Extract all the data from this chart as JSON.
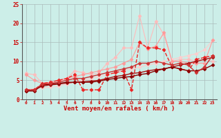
{
  "background_color": "#cceee8",
  "grid_color": "#aabbbb",
  "xlabel": "Vent moyen/en rafales ( km/h )",
  "xlabel_color": "#cc0000",
  "tick_color": "#cc0000",
  "xlim": [
    -0.5,
    23.5
  ],
  "ylim": [
    0,
    25
  ],
  "yticks": [
    0,
    5,
    10,
    15,
    20,
    25
  ],
  "xticks": [
    0,
    1,
    2,
    3,
    4,
    5,
    6,
    7,
    8,
    9,
    10,
    11,
    12,
    13,
    14,
    15,
    16,
    17,
    18,
    19,
    20,
    21,
    22,
    23
  ],
  "series": [
    {
      "x": [
        0,
        1,
        2,
        3,
        4,
        5,
        6,
        7,
        8,
        9,
        10,
        11,
        12,
        13,
        14,
        15,
        16,
        17,
        18,
        19,
        20,
        21,
        22,
        23
      ],
      "y": [
        6.8,
        6.5,
        4.2,
        4.2,
        4.5,
        5.5,
        7.5,
        7.0,
        6.5,
        7.0,
        9.5,
        11.0,
        13.5,
        13.5,
        22.0,
        13.5,
        20.5,
        17.0,
        10.0,
        10.5,
        10.5,
        10.0,
        10.5,
        10.0
      ],
      "color": "#ffbbbb",
      "marker": "D",
      "markersize": 2.5,
      "linewidth": 0.8,
      "linestyle": "-"
    },
    {
      "x": [
        0,
        1,
        2,
        3,
        4,
        5,
        6,
        7,
        8,
        9,
        10,
        11,
        12,
        13,
        14,
        15,
        16,
        17,
        18,
        19,
        20,
        21,
        22,
        23
      ],
      "y": [
        2.5,
        2.8,
        3.0,
        3.2,
        3.5,
        4.0,
        4.5,
        5.0,
        5.5,
        6.0,
        6.5,
        7.0,
        7.5,
        8.0,
        8.5,
        9.0,
        9.5,
        10.0,
        10.5,
        11.0,
        11.5,
        12.0,
        13.0,
        15.5
      ],
      "color": "#ffcccc",
      "marker": "D",
      "markersize": 2.5,
      "linewidth": 0.8,
      "linestyle": "-"
    },
    {
      "x": [
        0,
        1,
        2,
        3,
        4,
        5,
        6,
        7,
        8,
        9,
        10,
        11,
        12,
        13,
        14,
        15,
        16,
        17,
        18,
        19,
        20,
        21,
        22,
        23
      ],
      "y": [
        6.5,
        5.0,
        4.2,
        4.5,
        5.0,
        5.5,
        6.0,
        6.5,
        7.0,
        7.5,
        8.0,
        8.5,
        9.5,
        10.5,
        15.0,
        13.2,
        14.0,
        17.5,
        10.0,
        10.0,
        9.5,
        9.5,
        9.5,
        15.5
      ],
      "color": "#ff9999",
      "marker": "D",
      "markersize": 2.5,
      "linewidth": 0.8,
      "linestyle": "-"
    },
    {
      "x": [
        0,
        1,
        2,
        3,
        4,
        5,
        6,
        7,
        8,
        9,
        10,
        11,
        12,
        13,
        14,
        15,
        16,
        17,
        18,
        19,
        20,
        21,
        22,
        23
      ],
      "y": [
        2.5,
        2.5,
        4.2,
        4.5,
        5.0,
        5.5,
        6.5,
        2.5,
        2.5,
        2.5,
        6.5,
        7.0,
        7.5,
        2.5,
        15.0,
        13.5,
        13.5,
        13.0,
        8.5,
        8.0,
        7.5,
        10.5,
        11.0,
        11.5
      ],
      "color": "#ee2222",
      "marker": "D",
      "markersize": 2.5,
      "linewidth": 1.0,
      "linestyle": "--"
    },
    {
      "x": [
        0,
        1,
        2,
        3,
        4,
        5,
        6,
        7,
        8,
        9,
        10,
        11,
        12,
        13,
        14,
        15,
        16,
        17,
        18,
        19,
        20,
        21,
        22,
        23
      ],
      "y": [
        2.2,
        2.5,
        3.5,
        3.8,
        4.0,
        4.3,
        4.5,
        4.6,
        4.8,
        5.0,
        5.5,
        6.0,
        6.3,
        6.8,
        7.0,
        7.5,
        7.8,
        8.0,
        8.5,
        9.0,
        9.5,
        10.0,
        10.5,
        11.0
      ],
      "color": "#aa1111",
      "marker": "D",
      "markersize": 2.5,
      "linewidth": 1.0,
      "linestyle": "-"
    },
    {
      "x": [
        0,
        1,
        2,
        3,
        4,
        5,
        6,
        7,
        8,
        9,
        10,
        11,
        12,
        13,
        14,
        15,
        16,
        17,
        18,
        19,
        20,
        21,
        22,
        23
      ],
      "y": [
        2.2,
        2.2,
        3.8,
        4.0,
        4.2,
        4.5,
        4.5,
        4.5,
        4.5,
        4.8,
        5.2,
        5.5,
        5.8,
        6.0,
        6.5,
        6.8,
        7.5,
        8.0,
        8.5,
        8.0,
        7.5,
        7.5,
        8.0,
        9.0
      ],
      "color": "#880000",
      "marker": "D",
      "markersize": 2.5,
      "linewidth": 1.0,
      "linestyle": "-"
    },
    {
      "x": [
        0,
        1,
        2,
        3,
        4,
        5,
        6,
        7,
        8,
        9,
        10,
        11,
        12,
        13,
        14,
        15,
        16,
        17,
        18,
        19,
        20,
        21,
        22,
        23
      ],
      "y": [
        2.5,
        2.5,
        4.0,
        4.2,
        4.5,
        5.0,
        5.5,
        5.5,
        6.0,
        6.5,
        7.0,
        7.5,
        8.0,
        8.5,
        9.5,
        9.5,
        10.0,
        9.5,
        9.0,
        9.5,
        9.0,
        7.0,
        8.5,
        11.5
      ],
      "color": "#cc3333",
      "marker": "D",
      "markersize": 2.5,
      "linewidth": 1.0,
      "linestyle": "-"
    }
  ]
}
